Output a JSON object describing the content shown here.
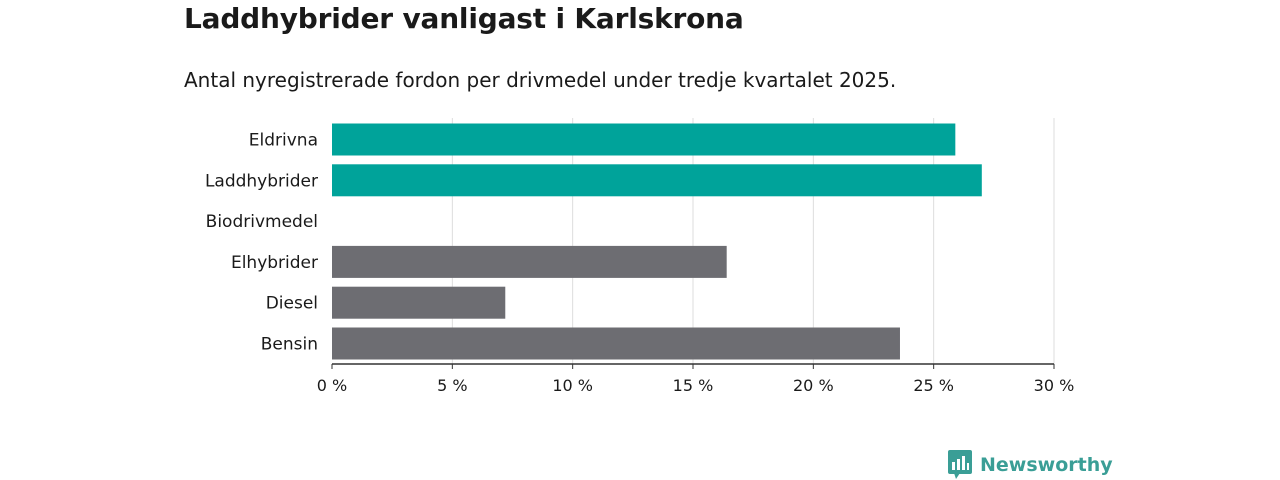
{
  "title": "Laddhybrider vanligast i Karlskrona",
  "subtitle": "Antal nyregistrerade fordon per drivmedel under tredje kvartalet 2025.",
  "brand": {
    "name": "Newsworthy",
    "icon": "newsworthy-logo-icon",
    "color": "#3a9e96"
  },
  "chart_data": {
    "type": "bar",
    "orientation": "horizontal",
    "categories": [
      "Eldrivna",
      "Laddhybrider",
      "Biodrivmedel",
      "Elhybrider",
      "Diesel",
      "Bensin"
    ],
    "values": [
      25.9,
      27.0,
      0,
      16.4,
      7.2,
      23.6
    ],
    "highlight": [
      true,
      true,
      false,
      false,
      false,
      false
    ],
    "colors": {
      "highlight": "#00a39a",
      "default": "#6d6d72"
    },
    "xlim": [
      0,
      30
    ],
    "x_ticks": [
      0,
      5,
      10,
      15,
      20,
      25,
      30
    ],
    "tick_labels": [
      "0 %",
      "5 %",
      "10 %",
      "15 %",
      "20 %",
      "25 %",
      "30 %"
    ],
    "grid": true
  }
}
